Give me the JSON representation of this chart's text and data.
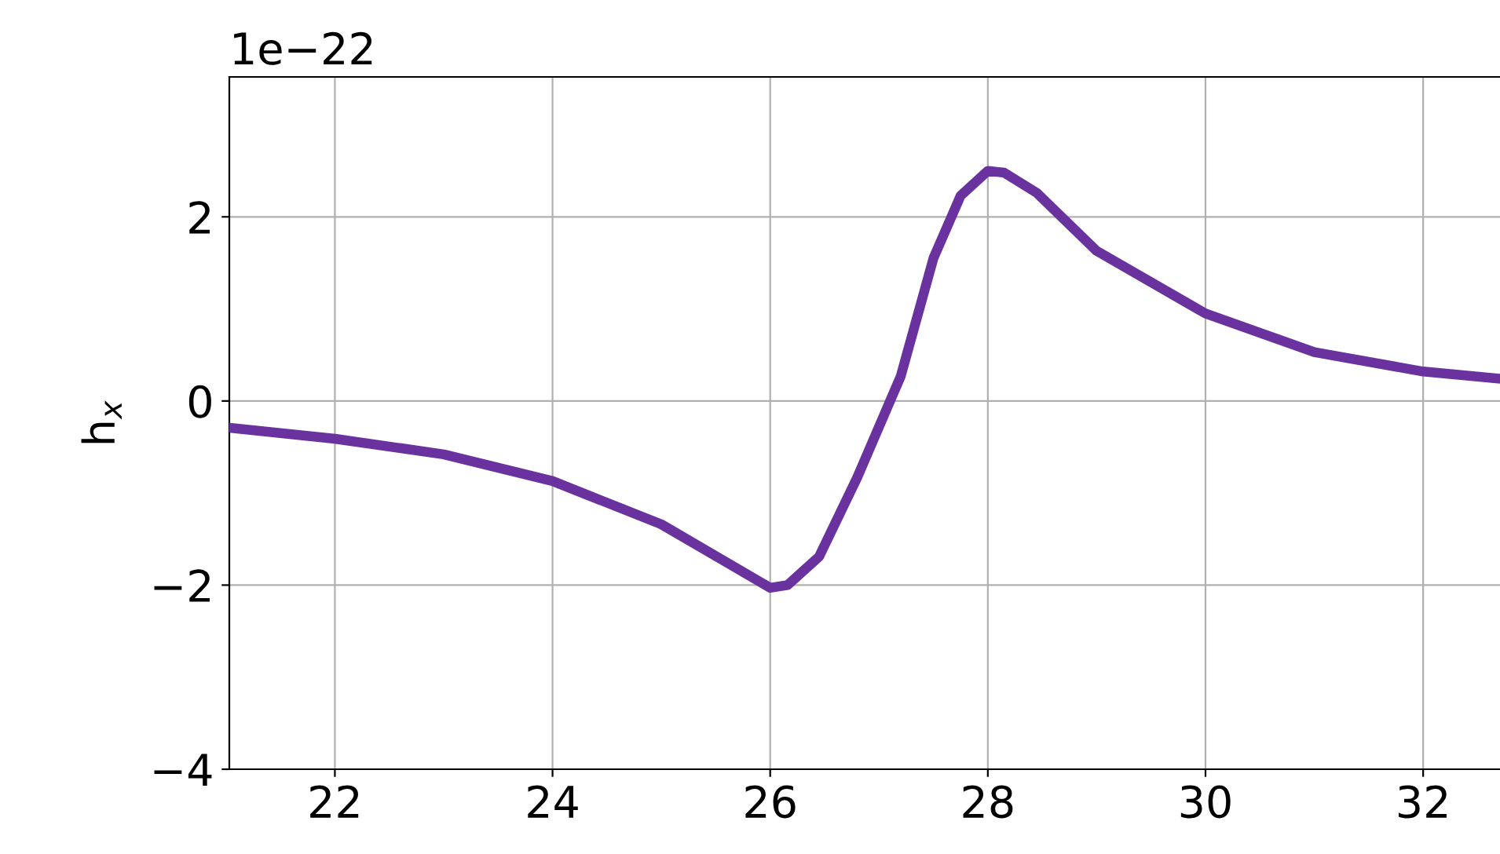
{
  "chart_data": {
    "type": "line",
    "ylabel": "h$_{x}$",
    "annotations": [
      "1e−22"
    ],
    "x": [
      21.03,
      22,
      23,
      24,
      25,
      25.58,
      26,
      26.16,
      26.45,
      26.8,
      27.2,
      27.5,
      27.75,
      28,
      28.15,
      28.45,
      29,
      30,
      31,
      32,
      32.72
    ],
    "series": [
      {
        "color": "#6a329f",
        "values": [
          -0.29,
          -0.41,
          -0.58,
          -0.87,
          -1.34,
          -1.74,
          -2.03,
          -2.0,
          -1.69,
          -0.83,
          0.27,
          1.55,
          2.23,
          2.5,
          2.48,
          2.26,
          1.63,
          0.95,
          0.53,
          0.32,
          0.24
        ]
      }
    ],
    "xlim": [
      21.03,
      32.72
    ],
    "xticks": [
      22,
      24,
      26,
      28,
      30,
      32
    ],
    "ylim": [
      -4,
      3.52
    ],
    "yticks": [
      {
        "value": -4,
        "label": "−4"
      },
      {
        "value": -2,
        "label": "−2"
      },
      0,
      2
    ],
    "grid": true,
    "line_style": "solid",
    "marker": "none"
  }
}
